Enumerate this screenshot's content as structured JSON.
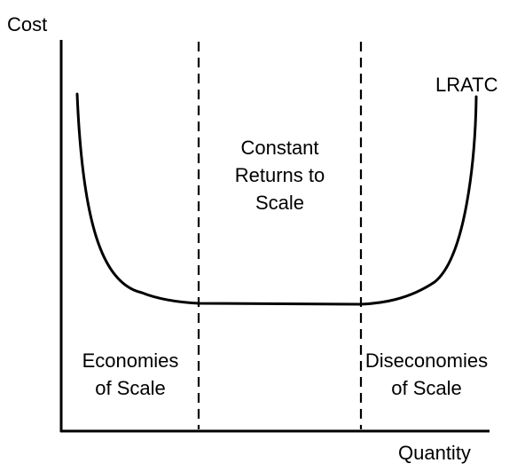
{
  "axes": {
    "y_label": "Cost",
    "x_label": "Quantity"
  },
  "curve": {
    "label": "LRATC"
  },
  "regions": {
    "middle": [
      "Constant",
      "Returns to",
      "Scale"
    ],
    "left": [
      "Economies",
      "of Scale"
    ],
    "right": [
      "Diseconomies",
      "of Scale"
    ]
  },
  "colors": {
    "line": "#000000",
    "background": "#ffffff"
  }
}
